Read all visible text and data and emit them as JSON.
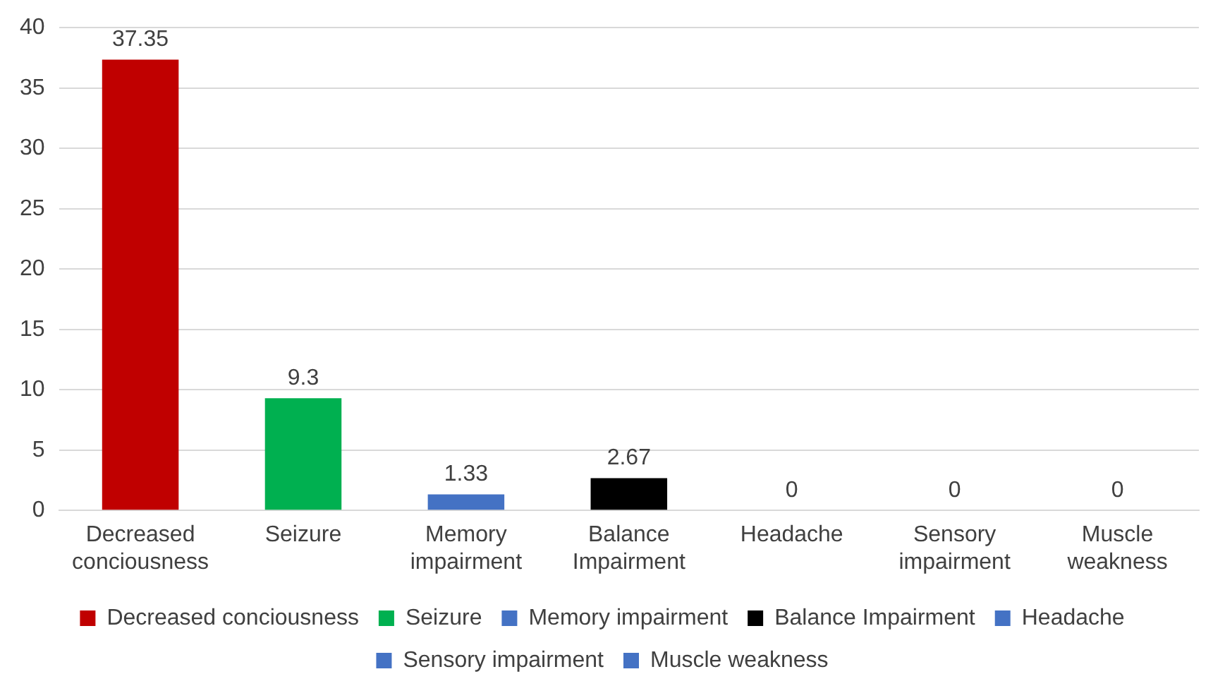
{
  "chart_data": {
    "type": "bar",
    "categories": [
      "Decreased conciousness",
      "Seizure",
      "Memory impairment",
      "Balance Impairment",
      "Headache",
      "Sensory impairment",
      "Muscle weakness"
    ],
    "series": [
      {
        "name": "Decreased conciousness",
        "color": "#c00000",
        "values": [
          37.35,
          null,
          null,
          null,
          null,
          null,
          null
        ]
      },
      {
        "name": "Seizure",
        "color": "#00b050",
        "values": [
          null,
          9.3,
          null,
          null,
          null,
          null,
          null
        ]
      },
      {
        "name": "Memory impairment",
        "color": "#4472c4",
        "values": [
          null,
          null,
          1.33,
          null,
          null,
          null,
          null
        ]
      },
      {
        "name": "Balance Impairment",
        "color": "#000000",
        "values": [
          null,
          null,
          null,
          2.67,
          null,
          null,
          null
        ]
      },
      {
        "name": "Headache",
        "color": "#4472c4",
        "values": [
          null,
          null,
          null,
          null,
          0,
          null,
          null
        ]
      },
      {
        "name": "Sensory impairment",
        "color": "#4472c4",
        "values": [
          null,
          null,
          null,
          null,
          null,
          0,
          null
        ]
      },
      {
        "name": "Muscle weakness",
        "color": "#4472c4",
        "values": [
          null,
          null,
          null,
          null,
          null,
          null,
          0
        ]
      }
    ],
    "ylim": [
      0,
      40
    ],
    "yticks": [
      0,
      5,
      10,
      15,
      20,
      25,
      30,
      35,
      40
    ],
    "grid": "y",
    "legend": "bottom",
    "data_labels": true
  }
}
